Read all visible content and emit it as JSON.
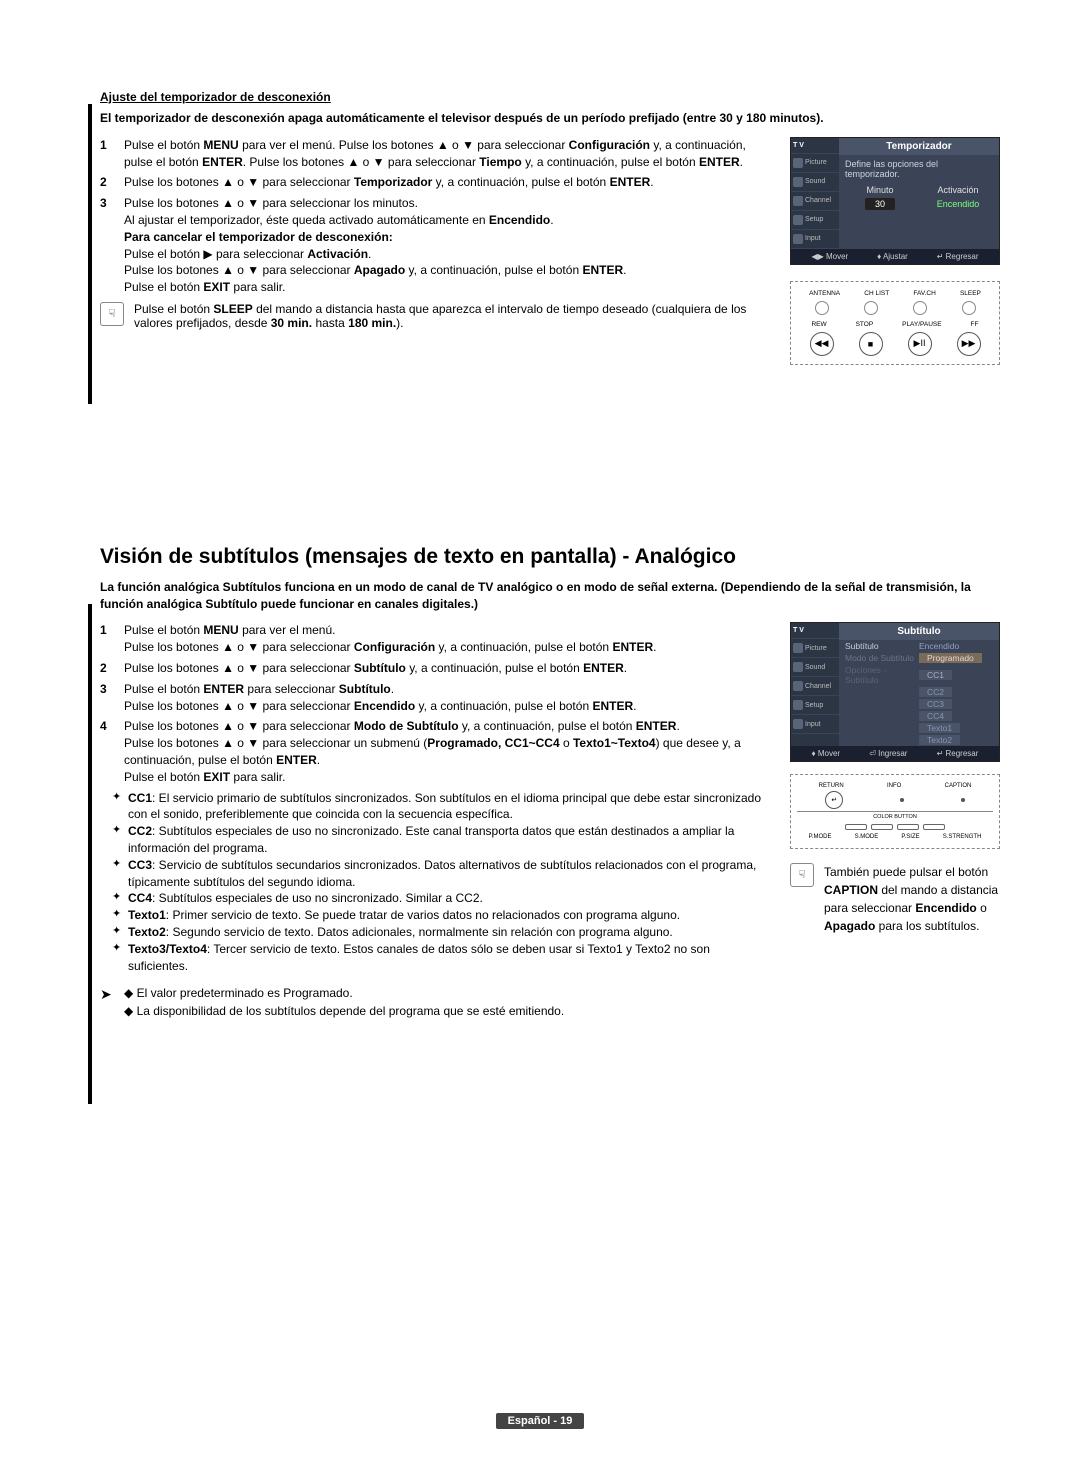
{
  "section1": {
    "title": "Ajuste del temporizador de desconexión",
    "intro": "El temporizador de desconexión apaga automáticamente el televisor después de un período prefijado (entre 30 y 180 minutos).",
    "steps": [
      {
        "n": "1",
        "body": "Pulse el botón <b>MENU</b> para ver el menú. Pulse los botones ▲ o ▼ para seleccionar <b>Configuración</b> y, a continuación, pulse el botón <b>ENTER</b>. Pulse los botones ▲ o ▼ para seleccionar <b>Tiempo</b> y, a continuación, pulse el botón <b>ENTER</b>."
      },
      {
        "n": "2",
        "body": "Pulse los botones ▲ o ▼ para seleccionar <b>Temporizador</b> y, a continuación, pulse el botón <b>ENTER</b>."
      },
      {
        "n": "3",
        "body": "Pulse los botones ▲ o ▼ para seleccionar los minutos.<br>Al ajustar el temporizador, éste queda activado automáticamente en <b>Encendido</b>.<br><b>Para cancelar el temporizador de desconexión:</b><br>Pulse el botón ▶ para seleccionar <b>Activación</b>.<br>Pulse los botones ▲ o ▼ para seleccionar <b>Apagado</b> y, a continuación, pulse el botón <b>ENTER</b>.<br>Pulse el botón <b>EXIT</b> para salir."
      }
    ],
    "note": "Pulse el botón <b>SLEEP</b> del mando a distancia hasta que aparezca el intervalo de tiempo deseado (cualquiera de los valores prefijados, desde <b>30 min.</b> hasta <b>180 min.</b>)."
  },
  "panel1": {
    "tv_label": "T V",
    "title": "Temporizador",
    "desc": "Define las opciones del temporizador.",
    "col_minute": "Minuto",
    "col_activation": "Activación",
    "val_minute": "30",
    "val_activation": "Encendido",
    "foot_move": "◀▶ Mover",
    "foot_adjust": "♦ Ajustar",
    "foot_return": "↵ Regresar",
    "side": [
      "Picture",
      "Sound",
      "Channel",
      "Setup",
      "Input"
    ]
  },
  "remote1": {
    "labels_top": [
      "ANTENNA",
      "CH LIST",
      "FAV.CH",
      "SLEEP"
    ],
    "labels_bot": [
      "REW",
      "STOP",
      "PLAY/PAUSE",
      "FF"
    ],
    "btns": [
      "◀◀",
      "■",
      "▶II",
      "▶▶"
    ]
  },
  "section2": {
    "heading": "Visión de subtítulos (mensajes de texto en pantalla) - Analógico",
    "intro": "La función analógica Subtítulos funciona en un modo de canal de TV analógico o en modo de señal externa. (Dependiendo de la señal de transmisión, la función analógica Subtítulo puede funcionar en canales digitales.)",
    "steps": [
      {
        "n": "1",
        "body": "Pulse el botón <b>MENU</b> para ver el menú.<br>Pulse los botones ▲ o ▼ para seleccionar <b>Configuración</b> y, a continuación, pulse el botón <b>ENTER</b>."
      },
      {
        "n": "2",
        "body": "Pulse los botones ▲ o ▼ para seleccionar <b>Subtítulo</b> y, a continuación, pulse el botón <b>ENTER</b>."
      },
      {
        "n": "3",
        "body": "Pulse el botón <b>ENTER</b> para seleccionar <b>Subtítulo</b>.<br>Pulse los botones ▲ o ▼ para seleccionar <b>Encendido</b> y, a continuación, pulse el botón <b>ENTER</b>."
      },
      {
        "n": "4",
        "body": "Pulse los botones ▲ o ▼ para seleccionar <b>Modo de Subtítulo</b> y, a continuación, pulse el botón <b>ENTER</b>.<br>Pulse los botones ▲ o ▼ para seleccionar un submenú (<b>Programado, CC1~CC4</b> o <b>Texto1~Texto4</b>) que desee y, a continuación, pulse el botón <b>ENTER</b>.<br>Pulse el botón <b>EXIT</b> para salir."
      }
    ],
    "bullets": [
      {
        "t": "CC1",
        "d": ": El servicio primario de subtítulos sincronizados. Son subtítulos en el idioma principal que debe estar sincronizado con el sonido, preferiblemente que coincida con la secuencia específica."
      },
      {
        "t": "CC2",
        "d": ": Subtítulos especiales de uso no sincronizado. Este canal transporta datos que están destinados a ampliar la información del programa."
      },
      {
        "t": "CC3",
        "d": ": Servicio de subtítulos secundarios sincronizados. Datos alternativos de subtítulos relacionados con el programa, típicamente subtítulos del segundo idioma."
      },
      {
        "t": "CC4",
        "d": ": Subtítulos especiales de uso no sincronizado. Similar a CC2."
      },
      {
        "t": "Texto1",
        "d": ": Primer servicio de texto. Se puede tratar de varios datos no relacionados con programa alguno."
      },
      {
        "t": "Texto2",
        "d": ": Segundo servicio de texto. Datos adicionales, normalmente sin relación con programa alguno."
      },
      {
        "t": "Texto3/Texto4",
        "d": ": Tercer servicio de texto. Estos canales de datos sólo se deben usar si Texto1 y Texto2 no son suficientes."
      }
    ],
    "arrow_notes": [
      "El valor predeterminado es Programado.",
      "La disponibilidad de los subtítulos depende del programa que se esté emitiendo."
    ]
  },
  "panel2": {
    "title": "Subtítulo",
    "r_subtitle": "Subtítulo",
    "v_subtitle": "Encendido",
    "r_mode": "Modo de Subtítulo",
    "v_mode": "Programado",
    "r_opts": "Opciones - Subtítulo",
    "opts": [
      "CC1",
      "CC2",
      "CC3",
      "CC4",
      "Texto1",
      "Texto2"
    ],
    "foot_move": "♦ Mover",
    "foot_enter": "⏎ Ingresar",
    "foot_return": "↵ Regresar"
  },
  "remote2": {
    "top": [
      "RETURN",
      "INFO",
      "CAPTION"
    ],
    "color_label": "COLOR BUTTON",
    "bot": [
      "P.MODE",
      "S.MODE",
      "P.SIZE",
      "S.STRENGTH"
    ]
  },
  "side_note2": "También puede pulsar el botón <b>CAPTION</b> del mando a distancia para seleccionar <b>Encendido</b> o <b>Apagado</b> para los subtítulos.",
  "footer": {
    "lang": "Español",
    "page": "19"
  }
}
